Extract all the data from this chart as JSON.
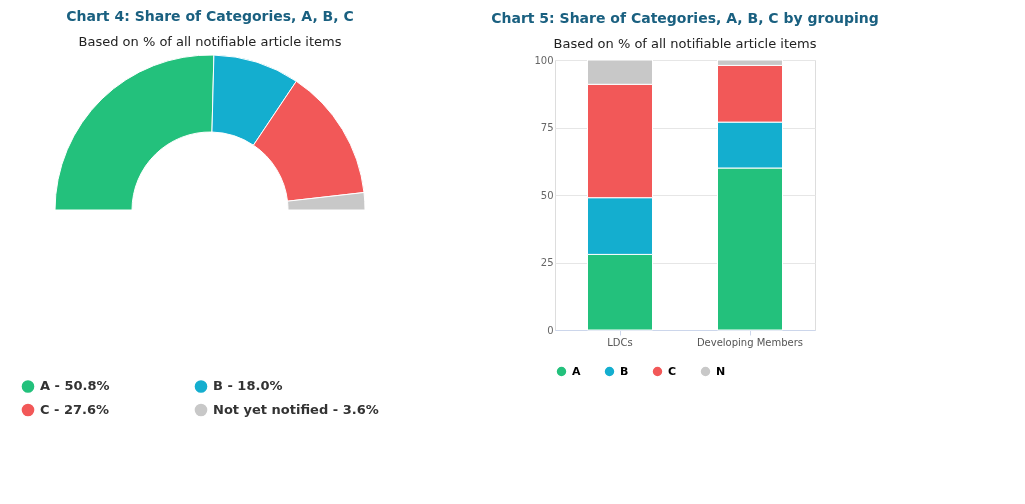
{
  "chart_data": [
    {
      "type": "donut",
      "title": "Chart 4: Share of Categories, A, B, C",
      "subtitle": "Based on % of all notifiable article items",
      "categories": [
        "A - 50.8%",
        "B - 18.0%",
        "C - 27.6%",
        "Not yet notified - 3.6%"
      ],
      "values": [
        50.8,
        18.0,
        27.6,
        3.6
      ],
      "colors": [
        "#23c17c",
        "#14aecf",
        "#f25858",
        "#c8c8c8"
      ],
      "legend": "bottom"
    },
    {
      "type": "bar",
      "stacked": true,
      "title": "Chart 5: Share of Categories, A, B, C by grouping",
      "subtitle": "Based on % of all notifiable article items",
      "categories": [
        "LDCs",
        "Developing Members"
      ],
      "series": [
        {
          "name": "A",
          "color": "#23c17c",
          "values": [
            28,
            60
          ]
        },
        {
          "name": "B",
          "color": "#14aecf",
          "values": [
            21,
            17
          ]
        },
        {
          "name": "C",
          "color": "#f25858",
          "values": [
            42,
            21
          ]
        },
        {
          "name": "N",
          "color": "#c8c8c8",
          "values": [
            9,
            2
          ]
        }
      ],
      "ylim": [
        0,
        100
      ],
      "yticks": [
        0,
        25,
        50,
        75,
        100
      ],
      "grid": "y",
      "legend": "bottom"
    }
  ]
}
